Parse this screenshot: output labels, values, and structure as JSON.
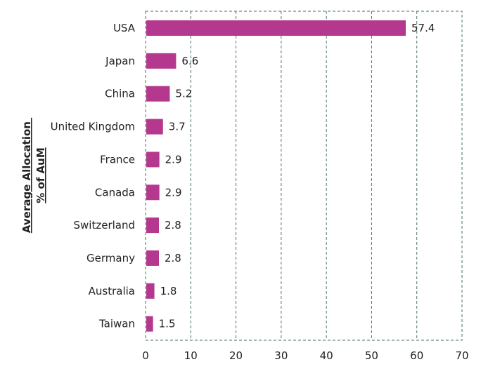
{
  "chart_data": {
    "type": "bar",
    "orientation": "horizontal",
    "categories": [
      "USA",
      "Japan",
      "China",
      "United Kingdom",
      "France",
      "Canada",
      "Switzerland",
      "Germany",
      "Australia",
      "Taiwan"
    ],
    "values": [
      57.4,
      6.6,
      5.2,
      3.7,
      2.9,
      2.9,
      2.8,
      2.8,
      1.8,
      1.5
    ],
    "value_labels": [
      "57.4",
      "6.6",
      "5.2",
      "3.7",
      "2.9",
      "2.9",
      "2.8",
      "2.8",
      "1.8",
      "1.5"
    ],
    "ylabel_lines": [
      "Average Allocation",
      "% of AuM"
    ],
    "xlim": [
      0,
      70
    ],
    "xticks": [
      0,
      10,
      20,
      30,
      40,
      50,
      60,
      70
    ],
    "grid": "vertical dashed",
    "bar_color": "#b5388f"
  }
}
